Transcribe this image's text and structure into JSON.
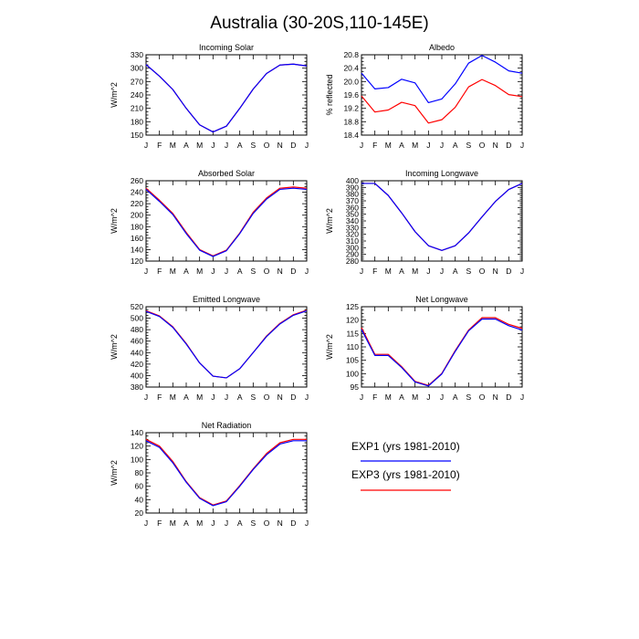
{
  "page_title": "Australia (30-20S,110-145E)",
  "colors": {
    "exp1": "#0000ff",
    "exp3": "#ff0000"
  },
  "legend": {
    "items": [
      {
        "label": "EXP1 (yrs 1981-2010)",
        "color": "#0000ff"
      },
      {
        "label": "EXP3 (yrs 1981-2010)",
        "color": "#ff0000"
      }
    ]
  },
  "chart_data": [
    {
      "type": "line",
      "title": "Incoming Solar",
      "ylabel": "W/m^2",
      "categories": [
        "J",
        "F",
        "M",
        "A",
        "M",
        "J",
        "J",
        "A",
        "S",
        "O",
        "N",
        "D",
        "J"
      ],
      "ylim": [
        150,
        330
      ],
      "yticks": [
        150,
        180,
        210,
        240,
        270,
        300,
        330
      ],
      "series": [
        {
          "name": "EXP1 (yrs 1981-2010)",
          "color": "#0000ff",
          "values": [
            308,
            282,
            252,
            210,
            173,
            157,
            170,
            210,
            253,
            288,
            307,
            309,
            305
          ]
        },
        {
          "name": "EXP3 (yrs 1981-2010)",
          "color": "#ff0000",
          "values": [
            308,
            282,
            252,
            210,
            173,
            157,
            170,
            210,
            253,
            288,
            307,
            309,
            305
          ]
        }
      ]
    },
    {
      "type": "line",
      "title": "Albedo",
      "ylabel": "% reflected",
      "categories": [
        "J",
        "F",
        "M",
        "A",
        "M",
        "J",
        "J",
        "A",
        "S",
        "O",
        "N",
        "D",
        "J"
      ],
      "ylim": [
        18.4,
        20.8
      ],
      "yticks": [
        "18.4",
        "18.8",
        "19.2",
        "19.6",
        "20.0",
        "20.4",
        "20.8"
      ],
      "series": [
        {
          "name": "EXP1 (yrs 1981-2010)",
          "color": "#0000ff",
          "values": [
            20.25,
            19.78,
            19.82,
            20.07,
            19.96,
            19.37,
            19.48,
            19.93,
            20.55,
            20.78,
            20.58,
            20.32,
            20.25
          ]
        },
        {
          "name": "EXP3 (yrs 1981-2010)",
          "color": "#ff0000",
          "values": [
            19.57,
            19.09,
            19.15,
            19.38,
            19.28,
            18.76,
            18.86,
            19.23,
            19.84,
            20.06,
            19.88,
            19.61,
            19.55
          ]
        }
      ]
    },
    {
      "type": "line",
      "title": "Absorbed Solar",
      "ylabel": "W/m^2",
      "categories": [
        "J",
        "F",
        "M",
        "A",
        "M",
        "J",
        "J",
        "A",
        "S",
        "O",
        "N",
        "D",
        "J"
      ],
      "ylim": [
        120,
        260
      ],
      "yticks": [
        120,
        140,
        160,
        180,
        200,
        220,
        240,
        260
      ],
      "series": [
        {
          "name": "EXP1 (yrs 1981-2010)",
          "color": "#0000ff",
          "values": [
            245,
            224,
            201,
            168,
            139,
            128,
            138,
            168,
            203,
            228,
            245,
            247,
            245
          ]
        },
        {
          "name": "EXP3 (yrs 1981-2010)",
          "color": "#ff0000",
          "values": [
            247,
            226,
            203,
            170,
            140,
            129,
            139,
            169,
            205,
            230,
            247,
            249,
            247
          ]
        }
      ]
    },
    {
      "type": "line",
      "title": "Incoming Longwave",
      "ylabel": "W/m^2",
      "categories": [
        "J",
        "F",
        "M",
        "A",
        "M",
        "J",
        "J",
        "A",
        "S",
        "O",
        "N",
        "D",
        "J"
      ],
      "ylim": [
        280,
        400
      ],
      "yticks": [
        280,
        290,
        300,
        310,
        320,
        330,
        340,
        350,
        360,
        370,
        380,
        390,
        400
      ],
      "series": [
        {
          "name": "EXP1 (yrs 1981-2010)",
          "color": "#0000ff",
          "values": [
            396,
            396,
            378,
            352,
            324,
            303,
            296,
            303,
            322,
            346,
            369,
            387,
            396
          ]
        },
        {
          "name": "EXP3 (yrs 1981-2010)",
          "color": "#ff0000",
          "values": [
            396,
            396,
            378,
            352,
            324,
            303,
            296,
            303,
            322,
            346,
            369,
            387,
            396
          ]
        }
      ]
    },
    {
      "type": "line",
      "title": "Emitted Longwave",
      "ylabel": "W/m^2",
      "categories": [
        "J",
        "F",
        "M",
        "A",
        "M",
        "J",
        "J",
        "A",
        "S",
        "O",
        "N",
        "D",
        "J"
      ],
      "ylim": [
        380,
        520
      ],
      "yticks": [
        380,
        400,
        420,
        440,
        460,
        480,
        500,
        520
      ],
      "series": [
        {
          "name": "EXP1 (yrs 1981-2010)",
          "color": "#0000ff",
          "values": [
            512,
            503,
            484,
            455,
            422,
            399,
            396,
            412,
            440,
            468,
            490,
            505,
            513
          ]
        },
        {
          "name": "EXP3 (yrs 1981-2010)",
          "color": "#ff0000",
          "values": [
            513,
            504,
            485,
            456,
            422,
            399,
            396,
            412,
            440,
            469,
            491,
            506,
            514
          ]
        }
      ]
    },
    {
      "type": "line",
      "title": "Net Longwave",
      "ylabel": "W/m^2",
      "categories": [
        "J",
        "F",
        "M",
        "A",
        "M",
        "J",
        "J",
        "A",
        "S",
        "O",
        "N",
        "D",
        "J"
      ],
      "ylim": [
        95,
        125
      ],
      "yticks": [
        95,
        100,
        105,
        110,
        115,
        120,
        125
      ],
      "series": [
        {
          "name": "EXP1 (yrs 1981-2010)",
          "color": "#0000ff",
          "values": [
            116.5,
            106.8,
            106.8,
            102.3,
            96.9,
            95.4,
            99.9,
            108.3,
            116.0,
            120.4,
            120.4,
            117.9,
            116.3
          ]
        },
        {
          "name": "EXP3 (yrs 1981-2010)",
          "color": "#ff0000",
          "values": [
            117.2,
            107.2,
            107.2,
            102.6,
            97.1,
            95.6,
            100.1,
            108.6,
            116.3,
            120.9,
            120.9,
            118.4,
            116.9
          ]
        }
      ]
    },
    {
      "type": "line",
      "title": "Net Radiation",
      "ylabel": "W/m^2",
      "categories": [
        "J",
        "F",
        "M",
        "A",
        "M",
        "J",
        "J",
        "A",
        "S",
        "O",
        "N",
        "D",
        "J"
      ],
      "ylim": [
        20,
        140
      ],
      "yticks": [
        20,
        40,
        60,
        80,
        100,
        120,
        140
      ],
      "series": [
        {
          "name": "EXP1 (yrs 1981-2010)",
          "color": "#0000ff",
          "values": [
            128,
            118,
            95,
            66,
            42,
            31,
            37,
            60,
            85,
            107,
            123,
            128,
            128
          ]
        },
        {
          "name": "EXP3 (yrs 1981-2010)",
          "color": "#ff0000",
          "values": [
            130,
            120,
            97,
            67,
            43,
            32,
            38,
            61,
            86,
            109,
            125,
            130,
            130
          ]
        }
      ]
    }
  ]
}
